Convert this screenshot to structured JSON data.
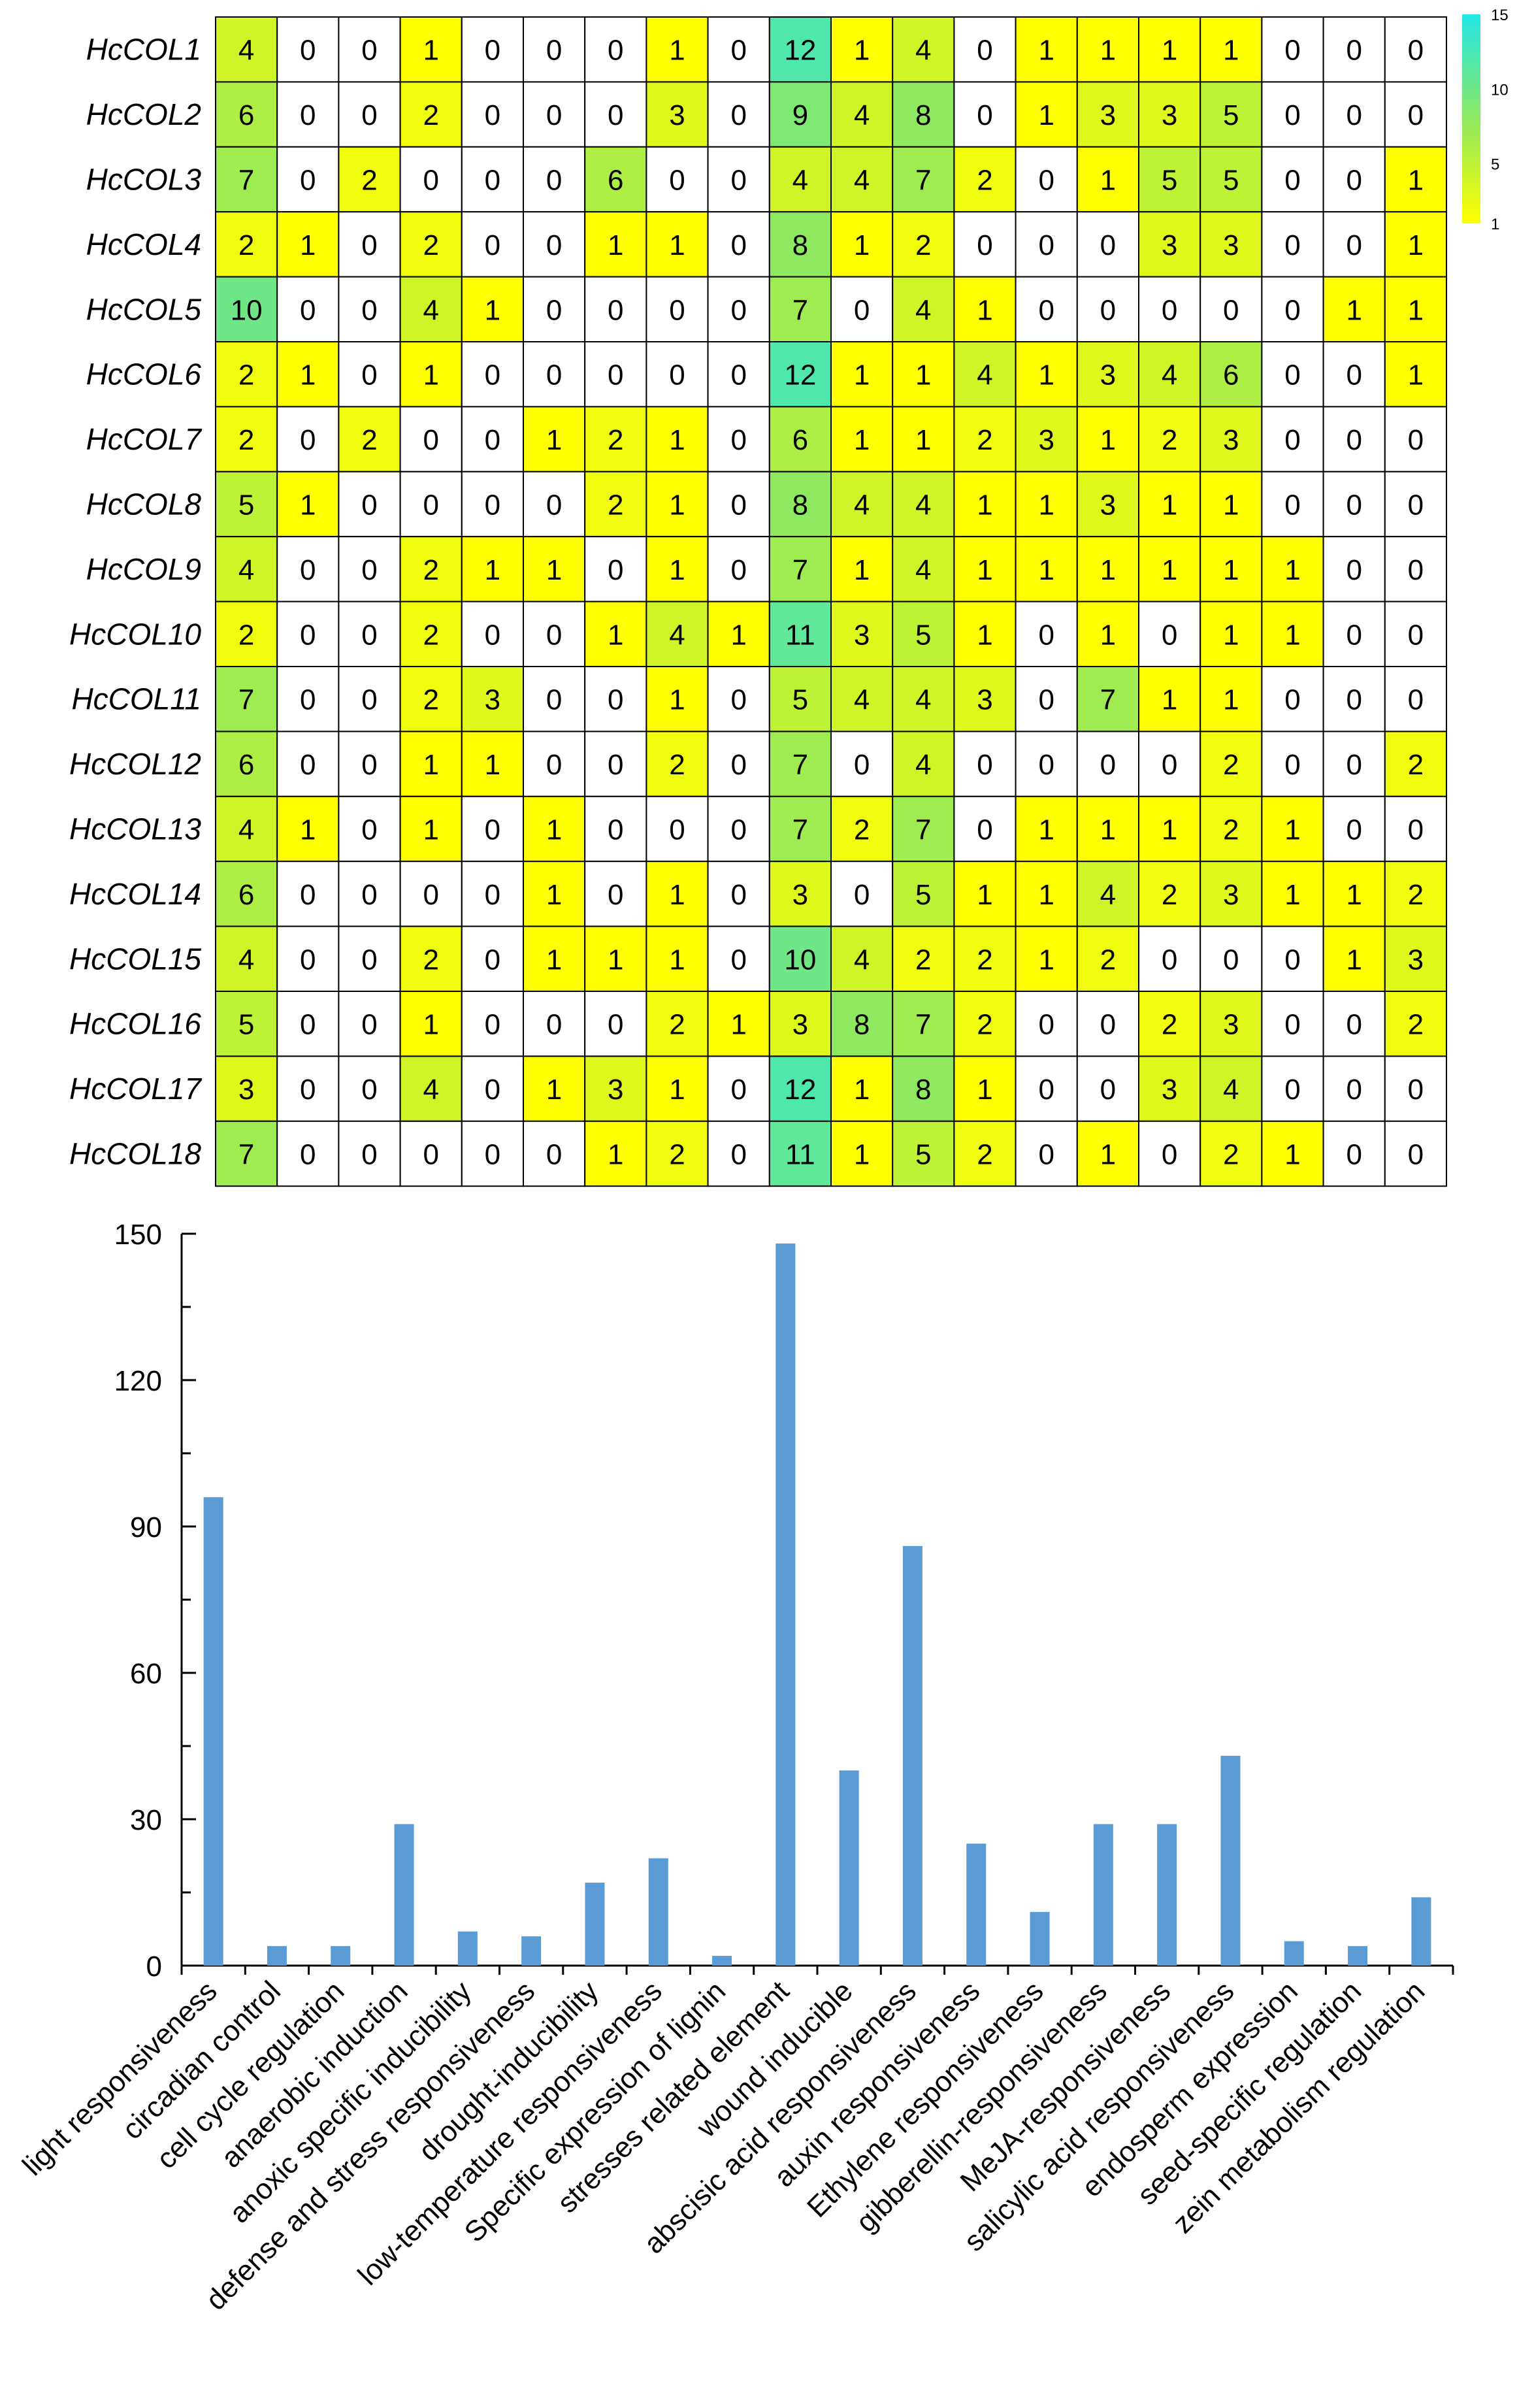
{
  "chart_data": [
    {
      "type": "heatmap",
      "title": "",
      "rows": [
        "HcCOL1",
        "HcCOL2",
        "HcCOL3",
        "HcCOL4",
        "HcCOL5",
        "HcCOL6",
        "HcCOL7",
        "HcCOL8",
        "HcCOL9",
        "HcCOL10",
        "HcCOL11",
        "HcCOL12",
        "HcCOL13",
        "HcCOL14",
        "HcCOL15",
        "HcCOL16",
        "HcCOL17",
        "HcCOL18"
      ],
      "columns": [
        "light responsiveness",
        "circadian control",
        "cell cycle regulation",
        "anaerobic induction",
        "anoxic specific inducibility",
        "defense and stress responsiveness",
        "drought-inducibility",
        "low-temperature responsiveness",
        "Specific expression of lignin",
        "stresses related element",
        "wound inducible",
        "abscisic acid responsiveness",
        "auxin responsiveness",
        "Ethylene responsiveness",
        "gibberellin-responsiveness",
        "MeJA-responsiveness",
        "salicylic acid responsiveness",
        "endosperm expression",
        "seed-specific regulation",
        "zein metabolism regulation"
      ],
      "values": [
        [
          4,
          0,
          0,
          1,
          0,
          0,
          0,
          1,
          0,
          12,
          1,
          4,
          0,
          1,
          1,
          1,
          1,
          0,
          0,
          0
        ],
        [
          6,
          0,
          0,
          2,
          0,
          0,
          0,
          3,
          0,
          9,
          4,
          8,
          0,
          1,
          3,
          3,
          5,
          0,
          0,
          0
        ],
        [
          7,
          0,
          2,
          0,
          0,
          0,
          6,
          0,
          0,
          4,
          4,
          7,
          2,
          0,
          1,
          5,
          5,
          0,
          0,
          1
        ],
        [
          2,
          1,
          0,
          2,
          0,
          0,
          1,
          1,
          0,
          8,
          1,
          2,
          0,
          0,
          0,
          3,
          3,
          0,
          0,
          1
        ],
        [
          10,
          0,
          0,
          4,
          1,
          0,
          0,
          0,
          0,
          7,
          0,
          4,
          1,
          0,
          0,
          0,
          0,
          0,
          1,
          1
        ],
        [
          2,
          1,
          0,
          1,
          0,
          0,
          0,
          0,
          0,
          12,
          1,
          1,
          4,
          1,
          3,
          4,
          6,
          0,
          0,
          1
        ],
        [
          2,
          0,
          2,
          0,
          0,
          1,
          2,
          1,
          0,
          6,
          1,
          1,
          2,
          3,
          1,
          2,
          3,
          0,
          0,
          0
        ],
        [
          5,
          1,
          0,
          0,
          0,
          0,
          2,
          1,
          0,
          8,
          4,
          4,
          1,
          1,
          3,
          1,
          1,
          0,
          0,
          0
        ],
        [
          4,
          0,
          0,
          2,
          1,
          1,
          0,
          1,
          0,
          7,
          1,
          4,
          1,
          1,
          1,
          1,
          1,
          1,
          0,
          0
        ],
        [
          2,
          0,
          0,
          2,
          0,
          0,
          1,
          4,
          1,
          11,
          3,
          5,
          1,
          0,
          1,
          0,
          1,
          1,
          0,
          0
        ],
        [
          7,
          0,
          0,
          2,
          3,
          0,
          0,
          1,
          0,
          5,
          4,
          4,
          3,
          0,
          7,
          1,
          1,
          0,
          0,
          0
        ],
        [
          6,
          0,
          0,
          1,
          1,
          0,
          0,
          2,
          0,
          7,
          0,
          4,
          0,
          0,
          0,
          0,
          2,
          0,
          0,
          2
        ],
        [
          4,
          1,
          0,
          1,
          0,
          1,
          0,
          0,
          0,
          7,
          2,
          7,
          0,
          1,
          1,
          1,
          2,
          1,
          0,
          0
        ],
        [
          6,
          0,
          0,
          0,
          0,
          1,
          0,
          1,
          0,
          3,
          0,
          5,
          1,
          1,
          4,
          2,
          3,
          1,
          1,
          2
        ],
        [
          4,
          0,
          0,
          2,
          0,
          1,
          1,
          1,
          0,
          10,
          4,
          2,
          2,
          1,
          2,
          0,
          0,
          0,
          1,
          3
        ],
        [
          5,
          0,
          0,
          1,
          0,
          0,
          0,
          2,
          1,
          3,
          8,
          7,
          2,
          0,
          0,
          2,
          3,
          0,
          0,
          2
        ],
        [
          3,
          0,
          0,
          4,
          0,
          1,
          3,
          1,
          0,
          12,
          1,
          8,
          1,
          0,
          0,
          3,
          4,
          0,
          0,
          0
        ],
        [
          7,
          0,
          0,
          0,
          0,
          0,
          1,
          2,
          0,
          11,
          1,
          5,
          2,
          0,
          1,
          0,
          2,
          1,
          0,
          0
        ]
      ],
      "colorbar": {
        "ticks": [
          "15",
          "10",
          "5",
          "1"
        ],
        "min": 1,
        "max": 15,
        "colors": {
          "low": "#ffff00",
          "high": "#22e6e6",
          "zero": "#ffffff"
        }
      }
    },
    {
      "type": "bar",
      "title": "",
      "xlabel": "",
      "ylabel": "",
      "categories": [
        "light responsiveness",
        "circadian control",
        "cell cycle regulation",
        "anaerobic induction",
        "anoxic specific inducibility",
        "defense and stress responsiveness",
        "drought-inducibility",
        "low-temperature responsiveness",
        "Specific expression of lignin",
        "stresses related element",
        "wound inducible",
        "abscisic acid responsiveness",
        "auxin responsiveness",
        "Ethylene responsiveness",
        "gibberellin-responsiveness",
        "MeJA-responsiveness",
        "salicylic acid responsiveness",
        "endosperm expression",
        "seed-specific regulation",
        "zein metabolism regulation"
      ],
      "values": [
        96,
        4,
        4,
        29,
        7,
        6,
        17,
        22,
        2,
        148,
        40,
        86,
        25,
        11,
        29,
        29,
        43,
        5,
        4,
        14
      ],
      "ylim": [
        0,
        150
      ],
      "yticks": [
        "0",
        "30",
        "60",
        "90",
        "120",
        "150"
      ],
      "color": "#5b9bd5"
    }
  ]
}
